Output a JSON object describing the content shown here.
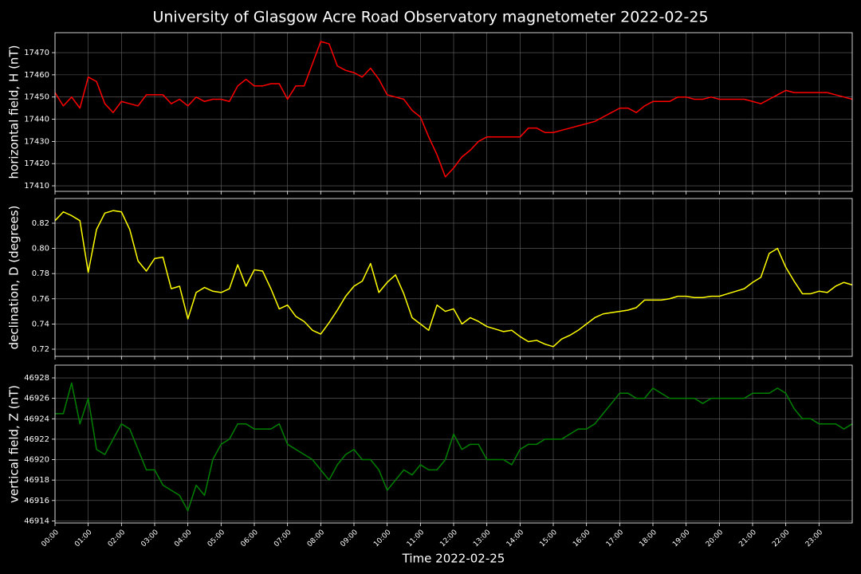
{
  "title": "University of Glasgow Acre Road Observatory magnetometer 2022-02-25",
  "chart_data": [
    {
      "type": "line",
      "ylabel": "horizontal field, H (nT)",
      "color": "#ff0000",
      "grid": true,
      "x": [
        0,
        0.25,
        0.5,
        0.75,
        1,
        1.25,
        1.5,
        1.75,
        2,
        2.25,
        2.5,
        2.75,
        3,
        3.25,
        3.5,
        3.75,
        4,
        4.25,
        4.5,
        4.75,
        5,
        5.25,
        5.5,
        5.75,
        6,
        6.25,
        6.5,
        6.75,
        7,
        7.25,
        7.5,
        7.75,
        8,
        8.25,
        8.5,
        8.75,
        9,
        9.25,
        9.5,
        9.75,
        10,
        10.25,
        10.5,
        10.75,
        11,
        11.25,
        11.5,
        11.75,
        12,
        12.25,
        12.5,
        12.75,
        13,
        13.25,
        13.5,
        13.75,
        14,
        14.25,
        14.5,
        14.75,
        15,
        15.25,
        15.5,
        15.75,
        16,
        16.25,
        16.5,
        16.75,
        17,
        17.25,
        17.5,
        17.75,
        18,
        18.25,
        18.5,
        18.75,
        19,
        19.25,
        19.5,
        19.75,
        20,
        20.25,
        20.5,
        20.75,
        21,
        21.25,
        21.5,
        21.75,
        22,
        22.25,
        22.5,
        22.75,
        23,
        23.25,
        23.5,
        23.75,
        24
      ],
      "values": [
        17452,
        17446,
        17450,
        17445,
        17459,
        17457,
        17447,
        17443,
        17448,
        17447,
        17446,
        17451,
        17451,
        17451,
        17447,
        17449,
        17446,
        17450,
        17448,
        17449,
        17449,
        17448,
        17455,
        17458,
        17455,
        17455,
        17456,
        17456,
        17449,
        17455,
        17455,
        17465,
        17475,
        17474,
        17464,
        17462,
        17461,
        17459,
        17463,
        17458,
        17451,
        17450,
        17449,
        17444,
        17441,
        17432,
        17424,
        17414,
        17418,
        17423,
        17426,
        17430,
        17432,
        17432,
        17432,
        17432,
        17432,
        17436,
        17436,
        17434,
        17434,
        17435,
        17436,
        17437,
        17438,
        17439,
        17441,
        17443,
        17445,
        17445,
        17443,
        17446,
        17448,
        17448,
        17448,
        17450,
        17450,
        17449,
        17449,
        17450,
        17449,
        17449,
        17449,
        17449,
        17448,
        17447,
        17449,
        17451,
        17453,
        17452,
        17452,
        17452,
        17452,
        17452,
        17451,
        17450,
        17449
      ],
      "xlim": [
        0,
        24
      ],
      "xticks": [
        0,
        1,
        2,
        3,
        4,
        5,
        6,
        7,
        8,
        9,
        10,
        11,
        12,
        13,
        14,
        15,
        16,
        17,
        18,
        19,
        20,
        21,
        22,
        23
      ],
      "ylim": [
        17407.5,
        17479
      ],
      "yticks": [
        17410,
        17420,
        17430,
        17440,
        17450,
        17460,
        17470
      ]
    },
    {
      "type": "line",
      "ylabel": "declination, D (degrees)",
      "color": "#ffff00",
      "grid": true,
      "x": [
        0,
        0.25,
        0.5,
        0.75,
        1,
        1.25,
        1.5,
        1.75,
        2,
        2.25,
        2.5,
        2.75,
        3,
        3.25,
        3.5,
        3.75,
        4,
        4.25,
        4.5,
        4.75,
        5,
        5.25,
        5.5,
        5.75,
        6,
        6.25,
        6.5,
        6.75,
        7,
        7.25,
        7.5,
        7.75,
        8,
        8.25,
        8.5,
        8.75,
        9,
        9.25,
        9.5,
        9.75,
        10,
        10.25,
        10.5,
        10.75,
        11,
        11.25,
        11.5,
        11.75,
        12,
        12.25,
        12.5,
        12.75,
        13,
        13.25,
        13.5,
        13.75,
        14,
        14.25,
        14.5,
        14.75,
        15,
        15.25,
        15.5,
        15.75,
        16,
        16.25,
        16.5,
        16.75,
        17,
        17.25,
        17.5,
        17.75,
        18,
        18.25,
        18.5,
        18.75,
        19,
        19.25,
        19.5,
        19.75,
        20,
        20.25,
        20.5,
        20.75,
        21,
        21.25,
        21.5,
        21.75,
        22,
        22.25,
        22.5,
        22.75,
        23,
        23.25,
        23.5,
        23.75,
        24
      ],
      "values": [
        0.822,
        0.829,
        0.826,
        0.822,
        0.781,
        0.815,
        0.828,
        0.83,
        0.829,
        0.815,
        0.79,
        0.782,
        0.792,
        0.793,
        0.768,
        0.77,
        0.744,
        0.765,
        0.769,
        0.766,
        0.765,
        0.768,
        0.787,
        0.77,
        0.783,
        0.782,
        0.768,
        0.752,
        0.755,
        0.746,
        0.742,
        0.735,
        0.732,
        0.741,
        0.751,
        0.762,
        0.77,
        0.774,
        0.788,
        0.765,
        0.773,
        0.779,
        0.764,
        0.745,
        0.74,
        0.735,
        0.755,
        0.75,
        0.752,
        0.74,
        0.745,
        0.742,
        0.738,
        0.736,
        0.734,
        0.735,
        0.73,
        0.726,
        0.727,
        0.724,
        0.722,
        0.728,
        0.731,
        0.735,
        0.74,
        0.745,
        0.748,
        0.749,
        0.75,
        0.751,
        0.753,
        0.759,
        0.759,
        0.759,
        0.76,
        0.762,
        0.762,
        0.761,
        0.761,
        0.762,
        0.762,
        0.764,
        0.766,
        0.768,
        0.773,
        0.777,
        0.796,
        0.8,
        0.785,
        0.774,
        0.764,
        0.764,
        0.766,
        0.765,
        0.77,
        0.773,
        0.771
      ],
      "xlim": [
        0,
        24
      ],
      "xticks": [
        0,
        1,
        2,
        3,
        4,
        5,
        6,
        7,
        8,
        9,
        10,
        11,
        12,
        13,
        14,
        15,
        16,
        17,
        18,
        19,
        20,
        21,
        22,
        23
      ],
      "ylim": [
        0.7143,
        0.8396
      ],
      "yticks": [
        0.72,
        0.74,
        0.76,
        0.78,
        {
          "value": 0.8,
          "label": "0.80"
        },
        0.82
      ]
    },
    {
      "type": "line",
      "ylabel": "vertical field, Z (nT)",
      "xlabel": "Time 2022-02-25",
      "color": "#008000",
      "grid": true,
      "x": [
        0,
        0.25,
        0.5,
        0.75,
        1,
        1.25,
        1.5,
        1.75,
        2,
        2.25,
        2.5,
        2.75,
        3,
        3.25,
        3.5,
        3.75,
        4,
        4.25,
        4.5,
        4.75,
        5,
        5.25,
        5.5,
        5.75,
        6,
        6.25,
        6.5,
        6.75,
        7,
        7.25,
        7.5,
        7.75,
        8,
        8.25,
        8.5,
        8.75,
        9,
        9.25,
        9.5,
        9.75,
        10,
        10.25,
        10.5,
        10.75,
        11,
        11.25,
        11.5,
        11.75,
        12,
        12.25,
        12.5,
        12.75,
        13,
        13.25,
        13.5,
        13.75,
        14,
        14.25,
        14.5,
        14.75,
        15,
        15.25,
        15.5,
        15.75,
        16,
        16.25,
        16.5,
        16.75,
        17,
        17.25,
        17.5,
        17.75,
        18,
        18.25,
        18.5,
        18.75,
        19,
        19.25,
        19.5,
        19.75,
        20,
        20.25,
        20.5,
        20.75,
        21,
        21.25,
        21.5,
        21.75,
        22,
        22.25,
        22.5,
        22.75,
        23,
        23.25,
        23.5,
        23.75,
        24
      ],
      "values": [
        46924.5,
        46924.5,
        46927.5,
        46923.5,
        46926,
        46921,
        46920.5,
        46922,
        46923.5,
        46923,
        46921,
        46919,
        46919,
        46917.5,
        46917,
        46916.5,
        46915,
        46917.5,
        46916.5,
        46920,
        46921.5,
        46922,
        46923.5,
        46923.5,
        46923,
        46923,
        46923,
        46923.5,
        46921.5,
        46921,
        46920.5,
        46920,
        46919,
        46918,
        46919.5,
        46920.5,
        46921,
        46920,
        46920,
        46919,
        46917,
        46918,
        46919,
        46918.5,
        46919.5,
        46919,
        46919,
        46920,
        46922.5,
        46921,
        46921.5,
        46921.5,
        46920,
        46920,
        46920,
        46919.5,
        46921,
        46921.5,
        46921.5,
        46922,
        46922,
        46922,
        46922.5,
        46923,
        46923,
        46923.5,
        46924.5,
        46925.5,
        46926.5,
        46926.5,
        46926,
        46926,
        46927,
        46926.5,
        46926,
        46926,
        46926,
        46926,
        46925.5,
        46926,
        46926,
        46926,
        46926,
        46926,
        46926.5,
        46926.5,
        46926.5,
        46927,
        46926.5,
        46925,
        46924,
        46924,
        46923.5,
        46923.5,
        46923.5,
        46923,
        46923.5
      ],
      "xlim": [
        0,
        24
      ],
      "xticks": [
        {
          "value": 0,
          "label": "00:00"
        },
        {
          "value": 1,
          "label": "01:00"
        },
        {
          "value": 2,
          "label": "02:00"
        },
        {
          "value": 3,
          "label": "03:00"
        },
        {
          "value": 4,
          "label": "04:00"
        },
        {
          "value": 5,
          "label": "05:00"
        },
        {
          "value": 6,
          "label": "06:00"
        },
        {
          "value": 7,
          "label": "07:00"
        },
        {
          "value": 8,
          "label": "08:00"
        },
        {
          "value": 9,
          "label": "09:00"
        },
        {
          "value": 10,
          "label": "10:00"
        },
        {
          "value": 11,
          "label": "11:00"
        },
        {
          "value": 12,
          "label": "12:00"
        },
        {
          "value": 13,
          "label": "13:00"
        },
        {
          "value": 14,
          "label": "14:00"
        },
        {
          "value": 15,
          "label": "15:00"
        },
        {
          "value": 16,
          "label": "16:00"
        },
        {
          "value": 17,
          "label": "17:00"
        },
        {
          "value": 18,
          "label": "18:00"
        },
        {
          "value": 19,
          "label": "19:00"
        },
        {
          "value": 20,
          "label": "20:00"
        },
        {
          "value": 21,
          "label": "21:00"
        },
        {
          "value": 22,
          "label": "22:00"
        },
        {
          "value": 23,
          "label": "23:00"
        }
      ],
      "ylim": [
        46913.8,
        46929.25
      ],
      "yticks": [
        46914,
        46916,
        46918,
        46920,
        46922,
        46924,
        46926,
        46928
      ]
    }
  ]
}
